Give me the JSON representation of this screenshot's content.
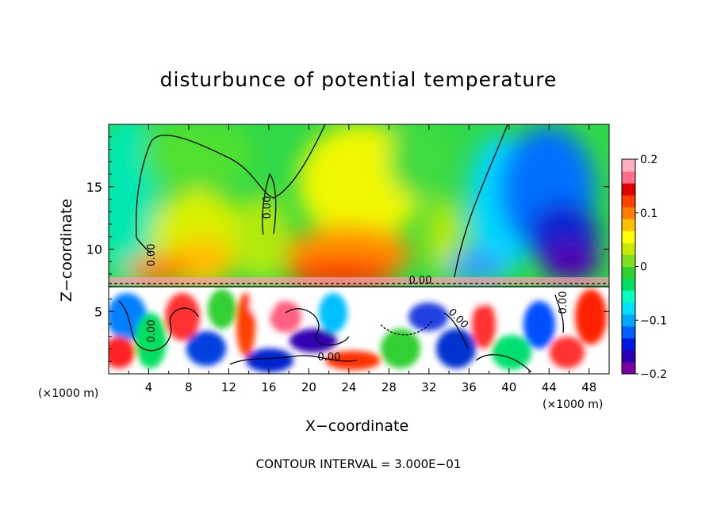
{
  "chart_data": {
    "type": "heatmap",
    "title": "disturbunce of potential temperature",
    "xlabel": "X−coordinate",
    "ylabel": "Z−coordinate",
    "x_unit_left": "(×1000 m)",
    "x_unit_right": "(×1000 m)",
    "footer": "CONTOUR INTERVAL = 3.000E−01",
    "xlim": [
      0,
      50
    ],
    "ylim": [
      0,
      20
    ],
    "x_ticks": [
      4,
      8,
      12,
      16,
      20,
      24,
      28,
      32,
      36,
      40,
      44,
      48
    ],
    "x_tick_labels": [
      "4",
      "8",
      "12",
      "16",
      "20",
      "24",
      "28",
      "32",
      "36",
      "40",
      "44",
      "48"
    ],
    "y_ticks": [
      5,
      10,
      15
    ],
    "y_tick_labels": [
      "5",
      "10",
      "15"
    ],
    "colorbar": {
      "range": [
        -0.2,
        0.2
      ],
      "ticks": [
        0.2,
        0.1,
        0,
        -0.1,
        -0.2
      ],
      "tick_labels": [
        "0.2",
        "0.1",
        "0",
        "−0.1",
        "−0.2"
      ],
      "colors": [
        "#7a00a0",
        "#2a00b0",
        "#0018e0",
        "#0060ff",
        "#00a8ff",
        "#00e0ff",
        "#00ffc0",
        "#00e060",
        "#30d030",
        "#80e020",
        "#c8ec00",
        "#ffff00",
        "#ffc000",
        "#ff8000",
        "#ff4000",
        "#e00000",
        "#ff7088",
        "#ffb0c0"
      ]
    },
    "contour_labels": [
      "0.00",
      "0.00",
      "0.00",
      "0.00",
      "0.00",
      "0.00",
      "0.00"
    ],
    "grid": false
  }
}
